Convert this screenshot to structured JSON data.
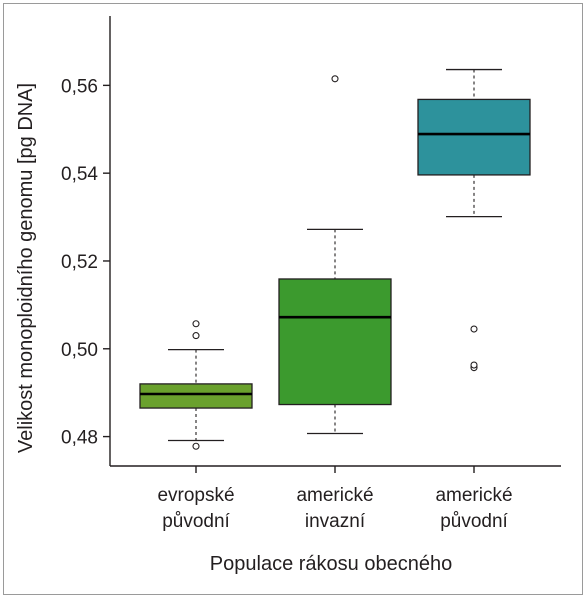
{
  "chart_data": {
    "type": "boxplot",
    "xlabel": "Populace rákosu obecného",
    "ylabel": "Velikost monoploidního genomu [pg DNA]",
    "ylim": [
      0.4733,
      0.5758
    ],
    "yticks": [
      0.48,
      0.5,
      0.52,
      0.54,
      0.56
    ],
    "ytick_labels": [
      "0,48",
      "0,50",
      "0,52",
      "0,54",
      "0,56"
    ],
    "grid": false,
    "categories": [
      {
        "line1": "evropské",
        "line2": "původní"
      },
      {
        "line1": "americké",
        "line2": "invazní"
      },
      {
        "line1": "americké",
        "line2": "původní"
      }
    ],
    "boxes": [
      {
        "name": "evropské původní",
        "whisker_low": 0.4791,
        "q1": 0.4865,
        "median": 0.4897,
        "q3": 0.492,
        "whisker_high": 0.4998,
        "outliers": [
          0.4778,
          0.503,
          0.5057
        ],
        "color": "#6aa12d"
      },
      {
        "name": "americké invazní",
        "whisker_low": 0.4807,
        "q1": 0.4873,
        "median": 0.5072,
        "q3": 0.5159,
        "whisker_high": 0.5272,
        "outliers": [
          0.5615
        ],
        "color": "#3c9a2e"
      },
      {
        "name": "americké původní",
        "whisker_low": 0.5301,
        "q1": 0.5396,
        "median": 0.5489,
        "q3": 0.5568,
        "whisker_high": 0.5636,
        "outliers": [
          0.4957,
          0.4963,
          0.5045
        ],
        "color": "#2d929c"
      }
    ]
  }
}
